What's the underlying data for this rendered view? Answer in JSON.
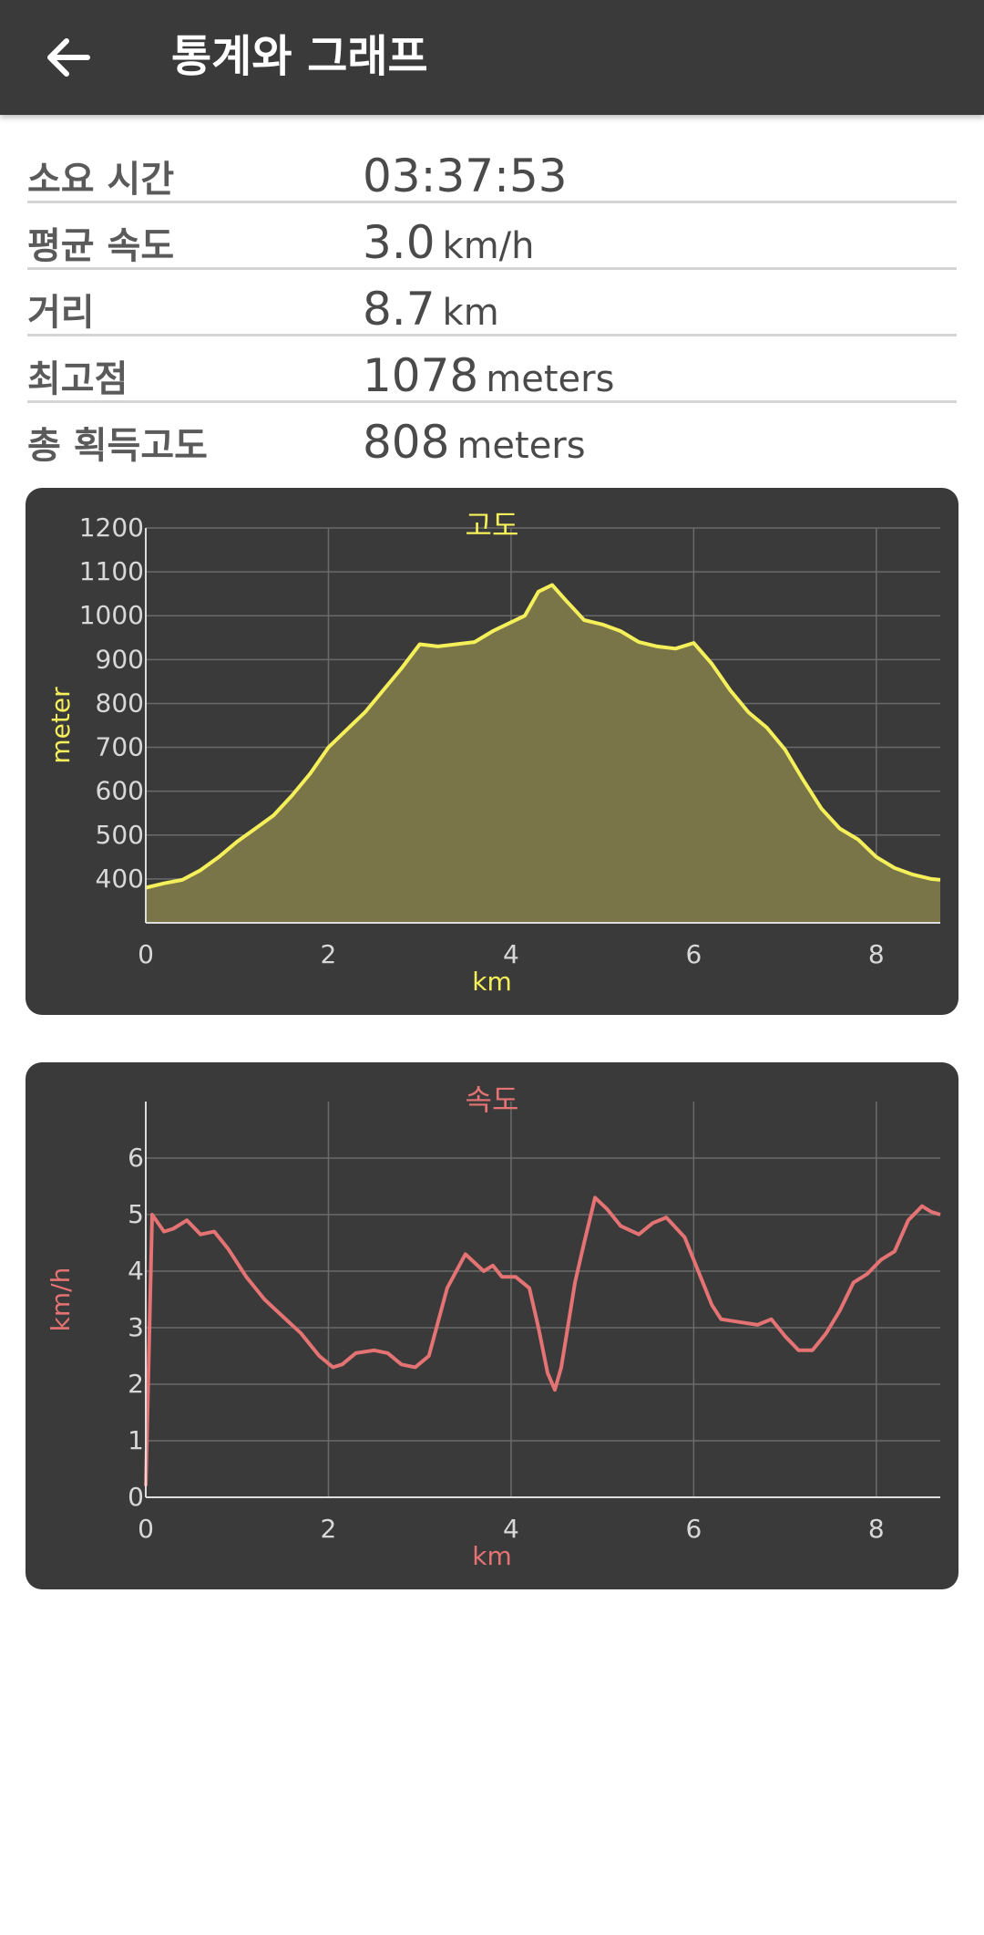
{
  "app_bar": {
    "title": "통계와 그래프",
    "back_icon": "arrow-left-icon"
  },
  "stats": [
    {
      "label": "소요 시간",
      "value": "03:37:53",
      "unit": ""
    },
    {
      "label": "평균 속도",
      "value": "3.0",
      "unit": "km/h"
    },
    {
      "label": "거리",
      "value": "8.7",
      "unit": "km"
    },
    {
      "label": "최고점",
      "value": "1078",
      "unit": "meters"
    },
    {
      "label": "총 획득고도",
      "value": "808",
      "unit": "meters"
    }
  ],
  "chart_data": [
    {
      "type": "area",
      "title": "고도",
      "xlabel": "km",
      "ylabel": "meter",
      "color": "#f5f05a",
      "fill": "#7a7549",
      "xlim": [
        0,
        8.7
      ],
      "ylim": [
        300,
        1200
      ],
      "xticks": [
        0,
        2,
        4,
        6,
        8
      ],
      "yticks": [
        400,
        500,
        600,
        700,
        800,
        900,
        1000,
        1100,
        1200
      ],
      "grid": true,
      "x": [
        0,
        0.2,
        0.4,
        0.6,
        0.8,
        1.0,
        1.2,
        1.4,
        1.6,
        1.8,
        2.0,
        2.2,
        2.4,
        2.6,
        2.8,
        3.0,
        3.2,
        3.4,
        3.6,
        3.8,
        4.0,
        4.15,
        4.3,
        4.45,
        4.6,
        4.8,
        5.0,
        5.2,
        5.4,
        5.6,
        5.8,
        6.0,
        6.2,
        6.4,
        6.6,
        6.8,
        7.0,
        7.2,
        7.4,
        7.6,
        7.8,
        8.0,
        8.2,
        8.4,
        8.6,
        8.7
      ],
      "y": [
        380,
        390,
        398,
        420,
        450,
        485,
        515,
        545,
        590,
        640,
        700,
        740,
        780,
        830,
        880,
        935,
        930,
        935,
        940,
        965,
        985,
        1000,
        1055,
        1070,
        1035,
        990,
        980,
        965,
        940,
        930,
        925,
        938,
        890,
        830,
        780,
        745,
        695,
        625,
        560,
        515,
        490,
        450,
        425,
        410,
        400,
        398
      ]
    },
    {
      "type": "line",
      "title": "속도",
      "xlabel": "km",
      "ylabel": "km/h",
      "color": "#e57373",
      "xlim": [
        0,
        8.7
      ],
      "ylim": [
        0,
        7
      ],
      "xticks": [
        0,
        2,
        4,
        6,
        8
      ],
      "yticks": [
        0,
        1,
        2,
        3,
        4,
        5,
        6
      ],
      "grid": true,
      "x": [
        0,
        0.07,
        0.2,
        0.3,
        0.45,
        0.6,
        0.75,
        0.9,
        1.1,
        1.3,
        1.5,
        1.7,
        1.9,
        2.05,
        2.15,
        2.3,
        2.5,
        2.65,
        2.8,
        2.95,
        3.1,
        3.3,
        3.5,
        3.7,
        3.8,
        3.9,
        4.05,
        4.2,
        4.3,
        4.4,
        4.48,
        4.55,
        4.62,
        4.7,
        4.8,
        4.92,
        5.05,
        5.2,
        5.4,
        5.55,
        5.7,
        5.9,
        6.05,
        6.2,
        6.3,
        6.5,
        6.7,
        6.85,
        7.0,
        7.15,
        7.3,
        7.45,
        7.6,
        7.75,
        7.9,
        8.05,
        8.2,
        8.35,
        8.5,
        8.6,
        8.7
      ],
      "y": [
        0.2,
        5.0,
        4.7,
        4.75,
        4.9,
        4.65,
        4.7,
        4.4,
        3.9,
        3.5,
        3.2,
        2.9,
        2.5,
        2.3,
        2.35,
        2.55,
        2.6,
        2.55,
        2.35,
        2.3,
        2.5,
        3.7,
        4.3,
        4.0,
        4.1,
        3.9,
        3.9,
        3.7,
        3.0,
        2.2,
        1.9,
        2.3,
        3.0,
        3.8,
        4.5,
        5.3,
        5.1,
        4.8,
        4.65,
        4.85,
        4.95,
        4.6,
        4.0,
        3.4,
        3.15,
        3.1,
        3.05,
        3.15,
        2.85,
        2.6,
        2.6,
        2.9,
        3.3,
        3.8,
        3.95,
        4.2,
        4.35,
        4.9,
        5.15,
        5.05,
        5.0
      ]
    }
  ]
}
